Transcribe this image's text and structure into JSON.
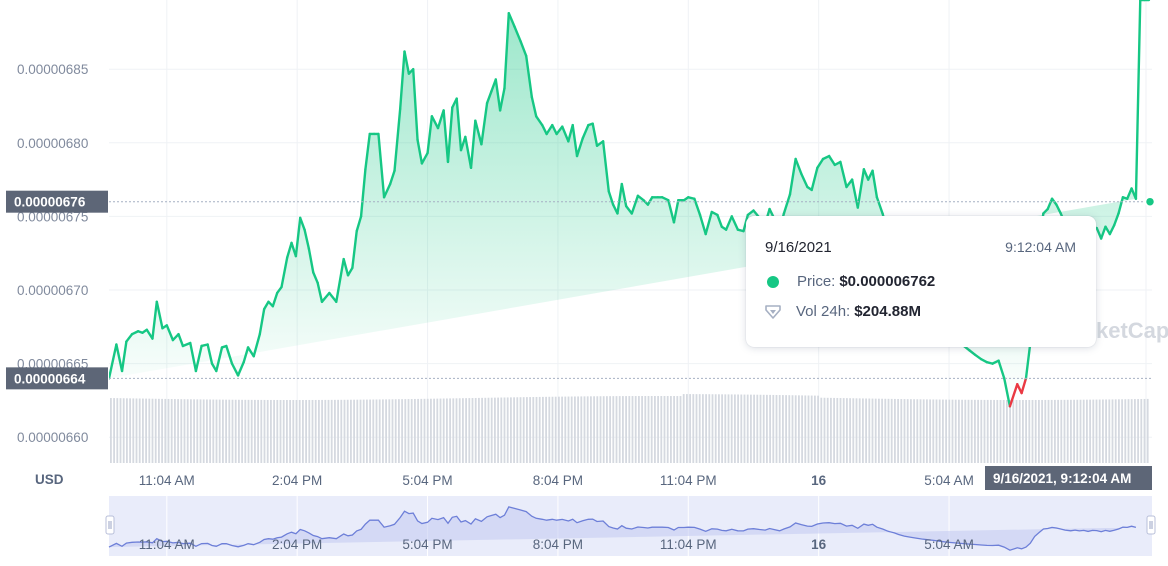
{
  "chart_data": {
    "type": "area",
    "currency_label": "USD",
    "y_ticks": [
      "0.00000660",
      "0.00000665",
      "0.00000670",
      "0.00000675",
      "0.00000680",
      "0.00000685"
    ],
    "x_ticks": [
      "11:04 AM",
      "2:04 PM",
      "5:04 PM",
      "8:04 PM",
      "11:04 PM",
      "16",
      "5:04 AM"
    ],
    "ylim": [
      6.5825e-06,
      6.897e-06
    ],
    "open_price": 6.64e-06,
    "current_price": 6.76e-06,
    "current_price_label": "0.00000676",
    "open_price_label": "0.00000664",
    "hover_label": "9/16/2021, 9:12:04 AM",
    "watermark": "CoinMarketCap",
    "colors": {
      "up": "#16c784",
      "down": "#ea3943",
      "volume": "#d5d9e0",
      "navigator": "#6d7fd8"
    },
    "x_hours": [
      0,
      0.17,
      0.3,
      0.4,
      0.53,
      0.67,
      0.77,
      0.87,
      1.0,
      1.1,
      1.23,
      1.33,
      1.47,
      1.6,
      1.7,
      1.87,
      2.0,
      2.13,
      2.27,
      2.37,
      2.47,
      2.6,
      2.7,
      2.83,
      2.97,
      3.1,
      3.2,
      3.33,
      3.47,
      3.57,
      3.67,
      3.77,
      3.87,
      3.97,
      4.1,
      4.2,
      4.3,
      4.4,
      4.5,
      4.6,
      4.7,
      4.8,
      4.9,
      5.07,
      5.23,
      5.4,
      5.5,
      5.6,
      5.7,
      5.8,
      5.9,
      6.0,
      6.1,
      6.2,
      6.33,
      6.47,
      6.57,
      6.7,
      6.8,
      6.9,
      7.0,
      7.1,
      7.2,
      7.33,
      7.43,
      7.57,
      7.7,
      7.8,
      7.9,
      8.0,
      8.1,
      8.2,
      8.33,
      8.43,
      8.57,
      8.7,
      8.8,
      8.9,
      9.0,
      9.1,
      9.2,
      9.33,
      9.47,
      9.6,
      9.73,
      9.83,
      9.97,
      10.07,
      10.2,
      10.3,
      10.43,
      10.57,
      10.67,
      10.77,
      10.9,
      11.03,
      11.13,
      11.23,
      11.37,
      11.5,
      11.6,
      11.7,
      11.8,
      11.9,
      12.03,
      12.17,
      12.3,
      12.4,
      12.5,
      12.63,
      12.73,
      12.87,
      13.0,
      13.1,
      13.23,
      13.33,
      13.47,
      13.6,
      13.73,
      13.87,
      14.0,
      14.1,
      14.2,
      14.33,
      14.47,
      14.6,
      14.7,
      14.83,
      14.97,
      15.1,
      15.2,
      15.3,
      15.43,
      15.53,
      15.67,
      15.8,
      15.93,
      16.07,
      16.17,
      16.3,
      16.43,
      16.57,
      16.7,
      16.83,
      16.97,
      17.1,
      17.23,
      17.37,
      17.47,
      17.57,
      17.67,
      17.8,
      17.93,
      18.07,
      18.17,
      18.3,
      18.43,
      18.57,
      18.7,
      18.83,
      19.0,
      19.13,
      19.27,
      19.4,
      19.53,
      19.67,
      19.8,
      19.93,
      20.07,
      20.2,
      20.33,
      20.47,
      20.6,
      20.73,
      20.9,
      21.0,
      21.1,
      21.2,
      21.3,
      21.4,
      21.5,
      21.6,
      21.7,
      21.8,
      21.9,
      22.0,
      22.13,
      22.23,
      22.33,
      22.43,
      22.53,
      22.63,
      22.73,
      22.83,
      22.93,
      23.03,
      23.13,
      23.23,
      23.33,
      23.43,
      23.53,
      23.63,
      23.73,
      23.83,
      23.93
    ],
    "price": [
      6.64e-06,
      6.663e-06,
      6.645e-06,
      6.665e-06,
      6.67e-06,
      6.672e-06,
      6.671e-06,
      6.673e-06,
      6.667e-06,
      6.692e-06,
      6.674e-06,
      6.676e-06,
      6.666e-06,
      6.67e-06,
      6.662e-06,
      6.664e-06,
      6.645e-06,
      6.662e-06,
      6.663e-06,
      6.65e-06,
      6.645e-06,
      6.661e-06,
      6.662e-06,
      6.65e-06,
      6.642e-06,
      6.651e-06,
      6.661e-06,
      6.655e-06,
      6.67e-06,
      6.687e-06,
      6.692e-06,
      6.689e-06,
      6.698e-06,
      6.702e-06,
      6.722e-06,
      6.732e-06,
      6.723e-06,
      6.749e-06,
      6.741e-06,
      6.728e-06,
      6.712e-06,
      6.705e-06,
      6.692e-06,
      6.698e-06,
      6.692e-06,
      6.721e-06,
      6.71e-06,
      6.715e-06,
      6.74e-06,
      6.75e-06,
      6.782e-06,
      6.806e-06,
      6.806e-06,
      6.806e-06,
      6.763e-06,
      6.772e-06,
      6.781e-06,
      6.823e-06,
      6.862e-06,
      6.847e-06,
      6.85e-06,
      6.802e-06,
      6.786e-06,
      6.793e-06,
      6.818e-06,
      6.81e-06,
      6.822e-06,
      6.787e-06,
      6.824e-06,
      6.83e-06,
      6.795e-06,
      6.804e-06,
      6.783e-06,
      6.815e-06,
      6.799e-06,
      6.827e-06,
      6.835e-06,
      6.843e-06,
      6.822e-06,
      6.837e-06,
      6.888e-06,
      6.879e-06,
      6.869e-06,
      6.859e-06,
      6.831e-06,
      6.818e-06,
      6.812e-06,
      6.806e-06,
      6.812e-06,
      6.806e-06,
      6.811e-06,
      6.801e-06,
      6.812e-06,
      6.791e-06,
      6.803e-06,
      6.812e-06,
      6.813e-06,
      6.798e-06,
      6.801e-06,
      6.767e-06,
      6.758e-06,
      6.752e-06,
      6.772e-06,
      6.757e-06,
      6.752e-06,
      6.764e-06,
      6.761e-06,
      6.758e-06,
      6.763e-06,
      6.763e-06,
      6.763e-06,
      6.761e-06,
      6.746e-06,
      6.761e-06,
      6.761e-06,
      6.763e-06,
      6.762e-06,
      6.751e-06,
      6.738e-06,
      6.753e-06,
      6.751e-06,
      6.743e-06,
      6.741e-06,
      6.75e-06,
      6.741e-06,
      6.74e-06,
      6.751e-06,
      6.754e-06,
      6.749e-06,
      6.745e-06,
      6.755e-06,
      6.749e-06,
      6.741e-06,
      6.752e-06,
      6.765e-06,
      6.789e-06,
      6.779e-06,
      6.77e-06,
      6.768e-06,
      6.783e-06,
      6.789e-06,
      6.791e-06,
      6.785e-06,
      6.787e-06,
      6.77e-06,
      6.775e-06,
      6.756e-06,
      6.782e-06,
      6.775e-06,
      6.781e-06,
      6.763e-06,
      6.752e-06,
      6.738e-06,
      6.728e-06,
      6.718e-06,
      6.708e-06,
      6.702e-06,
      6.696e-06,
      6.69e-06,
      6.686e-06,
      6.681e-06,
      6.676e-06,
      6.671e-06,
      6.668e-06,
      6.665e-06,
      6.662e-06,
      6.659e-06,
      6.656e-06,
      6.653e-06,
      6.651e-06,
      6.65e-06,
      6.652e-06,
      6.64e-06,
      6.621e-06,
      6.636e-06,
      6.63e-06,
      6.64e-06,
      6.664e-06,
      6.706e-06,
      6.73e-06,
      6.752e-06,
      6.755e-06,
      6.762e-06,
      6.758e-06,
      6.752e-06,
      6.745e-06,
      6.741e-06,
      6.745e-06,
      6.74e-06,
      6.743e-06,
      6.737e-06,
      6.743e-06,
      6.742e-06,
      6.735e-06,
      6.743e-06,
      6.738e-06,
      6.744e-06,
      6.752e-06,
      6.763e-06,
      6.762e-06,
      6.769e-06,
      6.762e-06
    ]
  },
  "tooltip": {
    "date": "9/16/2021",
    "time": "9:12:04 AM",
    "price_label": "Price:",
    "price_value": "$0.000006762",
    "volume_label": "Vol 24h:",
    "volume_value": "$204.88M"
  }
}
